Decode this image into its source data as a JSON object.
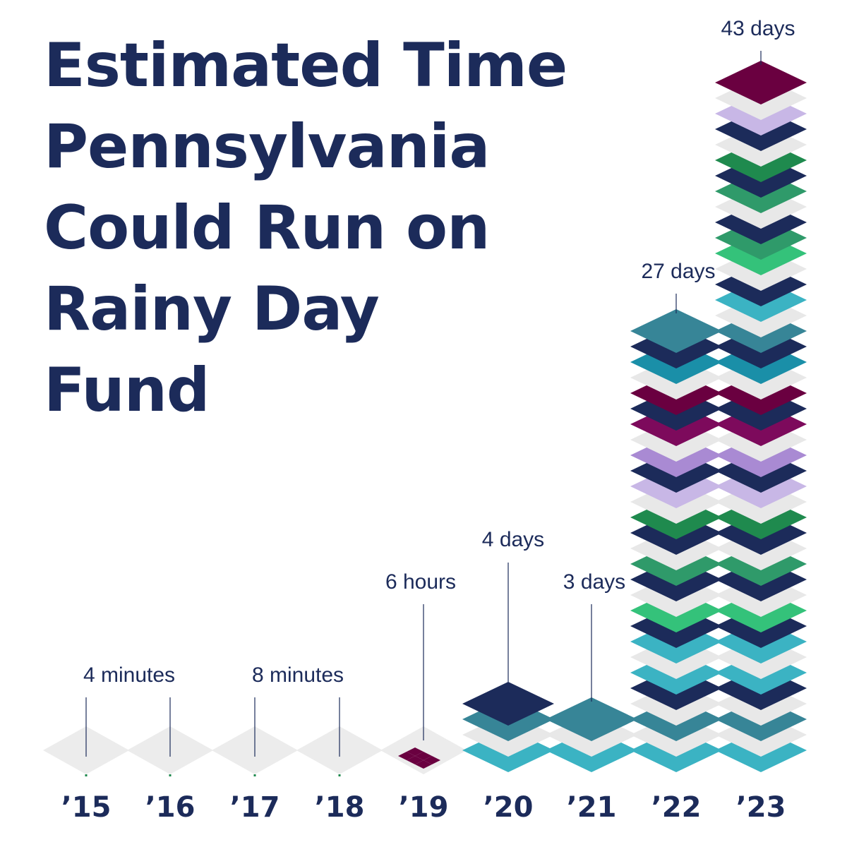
{
  "chart_data": {
    "type": "bar",
    "title_lines": [
      "Estimated Time",
      "Pennsylvania",
      "Could Run on",
      "Rainy Day",
      "Fund"
    ],
    "categories": [
      "’15",
      "’16",
      "’17",
      "’18",
      "’19",
      "’20",
      "’21",
      "’22",
      "’23"
    ],
    "value_labels": [
      "4 minutes",
      "",
      "8 minutes",
      "",
      "6 hours",
      "4 days",
      "3 days",
      "27 days",
      "43 days"
    ],
    "values_days": [
      0.003,
      0.003,
      0.006,
      0.006,
      0.25,
      4,
      3,
      27,
      43
    ],
    "xlabel": "",
    "ylabel": ""
  },
  "colors": {
    "navy": "#1c2b5a",
    "teal": "#3bb3c3",
    "teal_dark": "#378597",
    "cerulean": "#1a8fa8",
    "plum": "#6a0040",
    "magenta": "#7d0a5c",
    "lavender": "#a98ad3",
    "lilac": "#c8b7e6",
    "green": "#1f8a4e",
    "sea_green": "#2f9a6a",
    "mint": "#34c27a",
    "light_gray": "#e8e8e8"
  }
}
